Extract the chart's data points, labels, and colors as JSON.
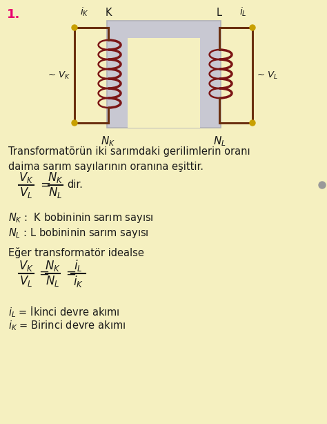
{
  "background_color": "#f5f0c0",
  "title_number": "1.",
  "title_color": "#e8006e",
  "text_color": "#1a1a1a",
  "coil_color": "#7b1515",
  "core_color": "#c8c8d2",
  "core_edge_color": "#b0b0b8",
  "wire_color": "#6b3010",
  "dot_color": "#c8a000",
  "line1": "Transformatörün iki sarımdaki gerilimlerin oranı",
  "line2": "daima sarım sayılarının oranına eşittir.",
  "nk_def": "$N_K$ :  K bobininin sarım sayısı",
  "nl_def": "$N_L$ : L bobininin sarım sayısı",
  "eger_line": "Eğer transformatör idealse",
  "il_def": "$\\dot{i}_L$ = İkinci devre akımı",
  "ik_def": "$\\dot{i}_K$ = Birinci devre akımı",
  "fig_w": 4.74,
  "fig_h": 6.14,
  "dpi": 100
}
